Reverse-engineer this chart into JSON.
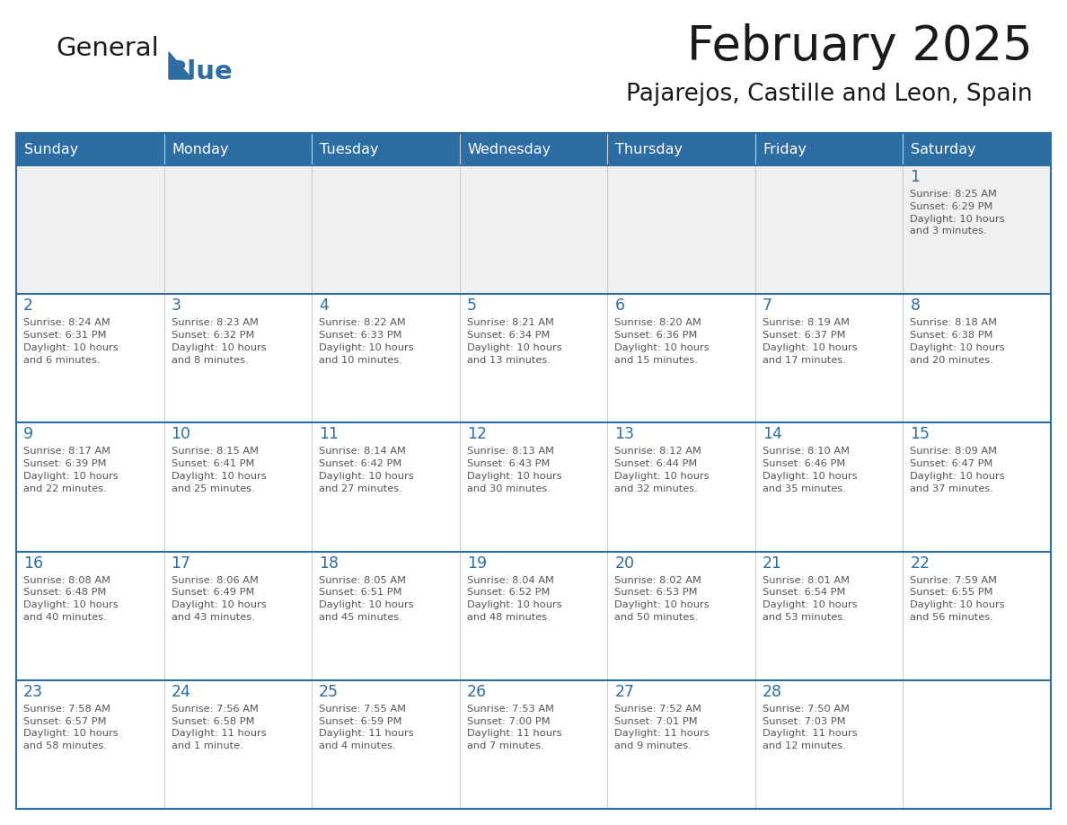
{
  "title": "February 2025",
  "subtitle": "Pajarejos, Castille and Leon, Spain",
  "days_of_week": [
    "Sunday",
    "Monday",
    "Tuesday",
    "Wednesday",
    "Thursday",
    "Friday",
    "Saturday"
  ],
  "header_bg": "#2E6DA4",
  "header_text": "#FFFFFF",
  "cell_bg_white": "#FFFFFF",
  "cell_bg_gray": "#F0F0F0",
  "border_color": "#2E6DA4",
  "cell_border_color": "#CCCCCC",
  "title_color": "#1a1a1a",
  "subtitle_color": "#1a1a1a",
  "day_num_color": "#2E6DA4",
  "cell_text_color": "#555555",
  "logo_color_general": "#1a1a1a",
  "logo_color_blue": "#2E6DA4",
  "logo_triangle_color": "#2E6DA4",
  "calendar_data": [
    [
      null,
      null,
      null,
      null,
      null,
      null,
      {
        "day": 1,
        "sunrise": "8:25 AM",
        "sunset": "6:29 PM",
        "daylight": "10 hours and 3 minutes."
      }
    ],
    [
      {
        "day": 2,
        "sunrise": "8:24 AM",
        "sunset": "6:31 PM",
        "daylight": "10 hours and 6 minutes."
      },
      {
        "day": 3,
        "sunrise": "8:23 AM",
        "sunset": "6:32 PM",
        "daylight": "10 hours and 8 minutes."
      },
      {
        "day": 4,
        "sunrise": "8:22 AM",
        "sunset": "6:33 PM",
        "daylight": "10 hours and 10 minutes."
      },
      {
        "day": 5,
        "sunrise": "8:21 AM",
        "sunset": "6:34 PM",
        "daylight": "10 hours and 13 minutes."
      },
      {
        "day": 6,
        "sunrise": "8:20 AM",
        "sunset": "6:36 PM",
        "daylight": "10 hours and 15 minutes."
      },
      {
        "day": 7,
        "sunrise": "8:19 AM",
        "sunset": "6:37 PM",
        "daylight": "10 hours and 17 minutes."
      },
      {
        "day": 8,
        "sunrise": "8:18 AM",
        "sunset": "6:38 PM",
        "daylight": "10 hours and 20 minutes."
      }
    ],
    [
      {
        "day": 9,
        "sunrise": "8:17 AM",
        "sunset": "6:39 PM",
        "daylight": "10 hours and 22 minutes."
      },
      {
        "day": 10,
        "sunrise": "8:15 AM",
        "sunset": "6:41 PM",
        "daylight": "10 hours and 25 minutes."
      },
      {
        "day": 11,
        "sunrise": "8:14 AM",
        "sunset": "6:42 PM",
        "daylight": "10 hours and 27 minutes."
      },
      {
        "day": 12,
        "sunrise": "8:13 AM",
        "sunset": "6:43 PM",
        "daylight": "10 hours and 30 minutes."
      },
      {
        "day": 13,
        "sunrise": "8:12 AM",
        "sunset": "6:44 PM",
        "daylight": "10 hours and 32 minutes."
      },
      {
        "day": 14,
        "sunrise": "8:10 AM",
        "sunset": "6:46 PM",
        "daylight": "10 hours and 35 minutes."
      },
      {
        "day": 15,
        "sunrise": "8:09 AM",
        "sunset": "6:47 PM",
        "daylight": "10 hours and 37 minutes."
      }
    ],
    [
      {
        "day": 16,
        "sunrise": "8:08 AM",
        "sunset": "6:48 PM",
        "daylight": "10 hours and 40 minutes."
      },
      {
        "day": 17,
        "sunrise": "8:06 AM",
        "sunset": "6:49 PM",
        "daylight": "10 hours and 43 minutes."
      },
      {
        "day": 18,
        "sunrise": "8:05 AM",
        "sunset": "6:51 PM",
        "daylight": "10 hours and 45 minutes."
      },
      {
        "day": 19,
        "sunrise": "8:04 AM",
        "sunset": "6:52 PM",
        "daylight": "10 hours and 48 minutes."
      },
      {
        "day": 20,
        "sunrise": "8:02 AM",
        "sunset": "6:53 PM",
        "daylight": "10 hours and 50 minutes."
      },
      {
        "day": 21,
        "sunrise": "8:01 AM",
        "sunset": "6:54 PM",
        "daylight": "10 hours and 53 minutes."
      },
      {
        "day": 22,
        "sunrise": "7:59 AM",
        "sunset": "6:55 PM",
        "daylight": "10 hours and 56 minutes."
      }
    ],
    [
      {
        "day": 23,
        "sunrise": "7:58 AM",
        "sunset": "6:57 PM",
        "daylight": "10 hours and 58 minutes."
      },
      {
        "day": 24,
        "sunrise": "7:56 AM",
        "sunset": "6:58 PM",
        "daylight": "11 hours and 1 minute."
      },
      {
        "day": 25,
        "sunrise": "7:55 AM",
        "sunset": "6:59 PM",
        "daylight": "11 hours and 4 minutes."
      },
      {
        "day": 26,
        "sunrise": "7:53 AM",
        "sunset": "7:00 PM",
        "daylight": "11 hours and 7 minutes."
      },
      {
        "day": 27,
        "sunrise": "7:52 AM",
        "sunset": "7:01 PM",
        "daylight": "11 hours and 9 minutes."
      },
      {
        "day": 28,
        "sunrise": "7:50 AM",
        "sunset": "7:03 PM",
        "daylight": "11 hours and 12 minutes."
      },
      null
    ]
  ]
}
